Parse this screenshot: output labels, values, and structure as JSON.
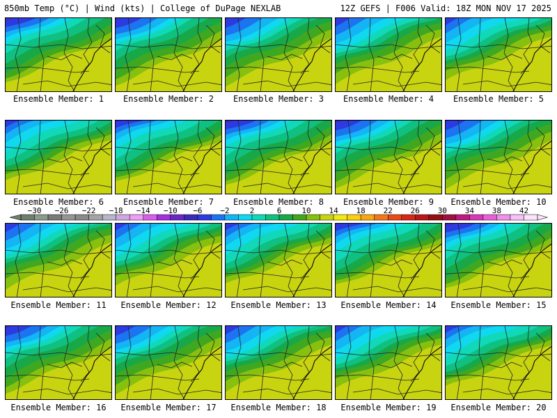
{
  "header": {
    "left": "850mb Temp (°C) | Wind (kts) | College of DuPage NEXLAB",
    "right": "12Z GEFS | F006 Valid: 18Z MON NOV 17 2025"
  },
  "member_prefix": "Ensemble Member: ",
  "members": [
    1,
    2,
    3,
    4,
    5,
    6,
    7,
    8,
    9,
    10,
    11,
    12,
    13,
    14,
    15,
    16,
    17,
    18,
    19,
    20
  ],
  "colorbar": {
    "tick_labels": [
      -30,
      -26,
      -22,
      -18,
      -14,
      -10,
      -6,
      -2,
      2,
      6,
      10,
      14,
      18,
      22,
      26,
      30,
      34,
      38,
      42
    ],
    "bins": [
      {
        "from": -32,
        "to": -30,
        "color": "#6f7f6f"
      },
      {
        "from": -30,
        "to": -28,
        "color": "#8c9b8c"
      },
      {
        "from": -28,
        "to": -26,
        "color": "#7a7a7a"
      },
      {
        "from": -26,
        "to": -24,
        "color": "#959595"
      },
      {
        "from": -24,
        "to": -22,
        "color": "#8a8a8a"
      },
      {
        "from": -22,
        "to": -20,
        "color": "#a5a5a5"
      },
      {
        "from": -20,
        "to": -18,
        "color": "#b7b7cc"
      },
      {
        "from": -18,
        "to": -16,
        "color": "#d0a8e0"
      },
      {
        "from": -16,
        "to": -14,
        "color": "#ef9ef5"
      },
      {
        "from": -14,
        "to": -12,
        "color": "#d860e8"
      },
      {
        "from": -12,
        "to": -10,
        "color": "#a030e0"
      },
      {
        "from": -10,
        "to": -8,
        "color": "#6a28c8"
      },
      {
        "from": -8,
        "to": -6,
        "color": "#3a2cb8"
      },
      {
        "from": -6,
        "to": -4,
        "color": "#2c3ae0"
      },
      {
        "from": -4,
        "to": -2,
        "color": "#1c74f0"
      },
      {
        "from": -2,
        "to": 0,
        "color": "#14b4f5"
      },
      {
        "from": 0,
        "to": 2,
        "color": "#10d8ee"
      },
      {
        "from": 2,
        "to": 4,
        "color": "#10d8b8"
      },
      {
        "from": 4,
        "to": 6,
        "color": "#10c080"
      },
      {
        "from": 6,
        "to": 8,
        "color": "#18a848"
      },
      {
        "from": 8,
        "to": 10,
        "color": "#40a820"
      },
      {
        "from": 10,
        "to": 12,
        "color": "#88c010"
      },
      {
        "from": 12,
        "to": 14,
        "color": "#c8d410"
      },
      {
        "from": 14,
        "to": 16,
        "color": "#f0ea10"
      },
      {
        "from": 16,
        "to": 18,
        "color": "#fad010"
      },
      {
        "from": 18,
        "to": 20,
        "color": "#f8a814"
      },
      {
        "from": 20,
        "to": 22,
        "color": "#f07818"
      },
      {
        "from": 22,
        "to": 24,
        "color": "#e84a18"
      },
      {
        "from": 24,
        "to": 26,
        "color": "#d42818"
      },
      {
        "from": 26,
        "to": 28,
        "color": "#b81818"
      },
      {
        "from": 28,
        "to": 30,
        "color": "#941010"
      },
      {
        "from": 30,
        "to": 32,
        "color": "#a01040"
      },
      {
        "from": 32,
        "to": 34,
        "color": "#c01880"
      },
      {
        "from": 34,
        "to": 36,
        "color": "#d838b8"
      },
      {
        "from": 36,
        "to": 38,
        "color": "#e860d8"
      },
      {
        "from": 38,
        "to": 40,
        "color": "#f090ec"
      },
      {
        "from": 40,
        "to": 42,
        "color": "#f8c0f8"
      },
      {
        "from": 42,
        "to": 44,
        "color": "#fce4fc"
      }
    ]
  },
  "map_colors": {
    "lines": "#222222"
  }
}
